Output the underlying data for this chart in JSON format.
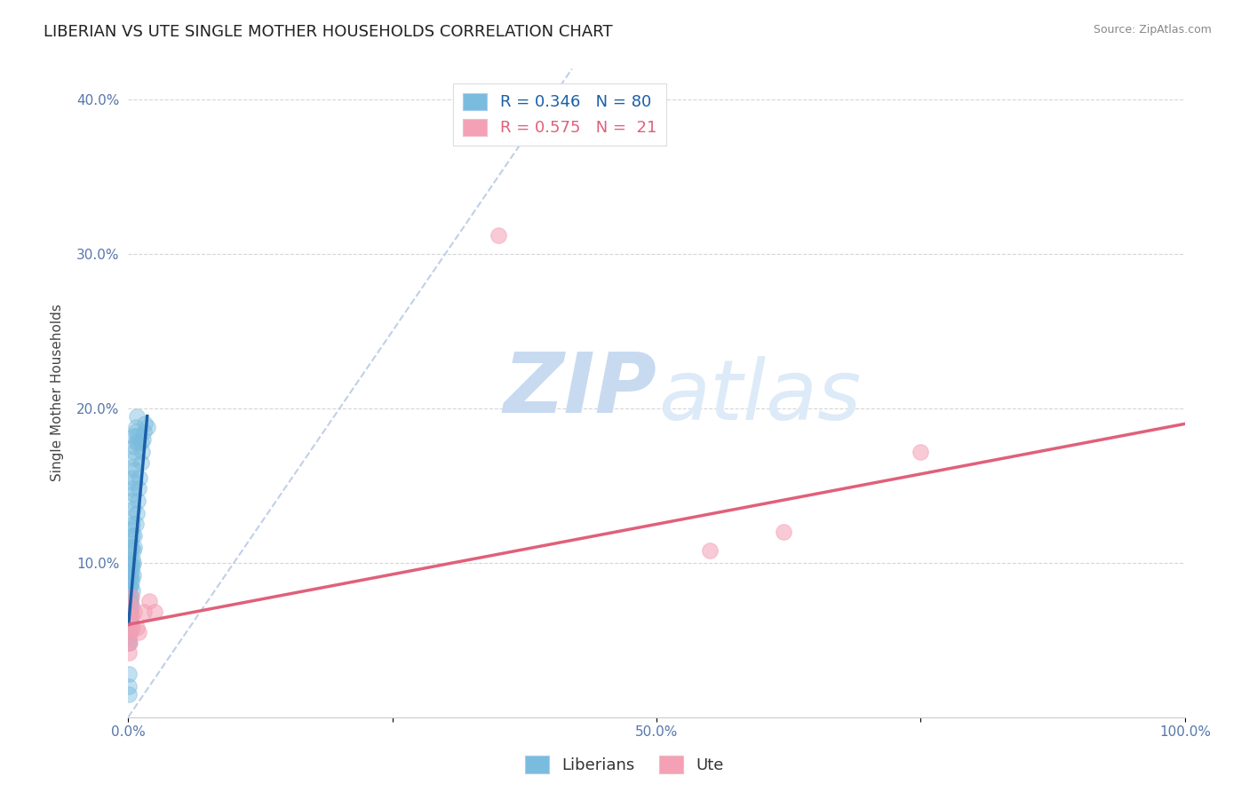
{
  "title": "LIBERIAN VS UTE SINGLE MOTHER HOUSEHOLDS CORRELATION CHART",
  "source": "Source: ZipAtlas.com",
  "ylabel": "Single Mother Households",
  "xlim": [
    0.0,
    1.0
  ],
  "ylim": [
    0.0,
    0.42
  ],
  "blue_R": 0.346,
  "blue_N": 80,
  "pink_R": 0.575,
  "pink_N": 21,
  "blue_color": "#7abcde",
  "pink_color": "#f4a0b5",
  "blue_line_color": "#1a5fa8",
  "pink_line_color": "#e0607a",
  "legend_label_blue": "Liberians",
  "legend_label_pink": "Ute",
  "watermark_zip": "ZIP",
  "watermark_atlas": "atlas",
  "background_color": "#ffffff",
  "blue_scatter": [
    [
      0.0005,
      0.055
    ],
    [
      0.0008,
      0.048
    ],
    [
      0.001,
      0.062
    ],
    [
      0.0008,
      0.072
    ],
    [
      0.001,
      0.058
    ],
    [
      0.0012,
      0.068
    ],
    [
      0.0015,
      0.08
    ],
    [
      0.001,
      0.09
    ],
    [
      0.0012,
      0.063
    ],
    [
      0.0015,
      0.055
    ],
    [
      0.0018,
      0.075
    ],
    [
      0.002,
      0.068
    ],
    [
      0.0015,
      0.1
    ],
    [
      0.0018,
      0.085
    ],
    [
      0.0022,
      0.092
    ],
    [
      0.0025,
      0.078
    ],
    [
      0.002,
      0.108
    ],
    [
      0.0022,
      0.1
    ],
    [
      0.003,
      0.088
    ],
    [
      0.0025,
      0.115
    ],
    [
      0.003,
      0.095
    ],
    [
      0.0028,
      0.122
    ],
    [
      0.0035,
      0.11
    ],
    [
      0.003,
      0.13
    ],
    [
      0.0038,
      0.102
    ],
    [
      0.004,
      0.118
    ],
    [
      0.0035,
      0.14
    ],
    [
      0.0042,
      0.125
    ],
    [
      0.0038,
      0.148
    ],
    [
      0.0045,
      0.135
    ],
    [
      0.004,
      0.155
    ],
    [
      0.005,
      0.145
    ],
    [
      0.0042,
      0.162
    ],
    [
      0.005,
      0.152
    ],
    [
      0.0055,
      0.16
    ],
    [
      0.006,
      0.175
    ],
    [
      0.005,
      0.182
    ],
    [
      0.006,
      0.168
    ],
    [
      0.007,
      0.188
    ],
    [
      0.006,
      0.172
    ],
    [
      0.007,
      0.178
    ],
    [
      0.008,
      0.195
    ],
    [
      0.007,
      0.185
    ],
    [
      0.009,
      0.178
    ],
    [
      0.008,
      0.182
    ],
    [
      0.0004,
      0.052
    ],
    [
      0.0006,
      0.065
    ],
    [
      0.0006,
      0.048
    ],
    [
      0.0008,
      0.075
    ],
    [
      0.001,
      0.082
    ],
    [
      0.0012,
      0.068
    ],
    [
      0.0015,
      0.092
    ],
    [
      0.002,
      0.058
    ],
    [
      0.0022,
      0.075
    ],
    [
      0.0025,
      0.085
    ],
    [
      0.003,
      0.098
    ],
    [
      0.003,
      0.072
    ],
    [
      0.0035,
      0.09
    ],
    [
      0.004,
      0.082
    ],
    [
      0.004,
      0.098
    ],
    [
      0.0045,
      0.092
    ],
    [
      0.005,
      0.108
    ],
    [
      0.005,
      0.1
    ],
    [
      0.006,
      0.11
    ],
    [
      0.006,
      0.118
    ],
    [
      0.007,
      0.125
    ],
    [
      0.008,
      0.132
    ],
    [
      0.009,
      0.14
    ],
    [
      0.01,
      0.148
    ],
    [
      0.011,
      0.155
    ],
    [
      0.012,
      0.165
    ],
    [
      0.013,
      0.172
    ],
    [
      0.014,
      0.18
    ],
    [
      0.012,
      0.178
    ],
    [
      0.015,
      0.185
    ],
    [
      0.016,
      0.19
    ],
    [
      0.018,
      0.188
    ],
    [
      0.0003,
      0.02
    ],
    [
      0.0005,
      0.028
    ],
    [
      0.0003,
      0.015
    ]
  ],
  "pink_scatter": [
    [
      0.0005,
      0.042
    ],
    [
      0.0008,
      0.05
    ],
    [
      0.001,
      0.058
    ],
    [
      0.0012,
      0.065
    ],
    [
      0.0015,
      0.048
    ],
    [
      0.0018,
      0.055
    ],
    [
      0.002,
      0.072
    ],
    [
      0.0022,
      0.062
    ],
    [
      0.003,
      0.078
    ],
    [
      0.0035,
      0.065
    ],
    [
      0.004,
      0.058
    ],
    [
      0.006,
      0.068
    ],
    [
      0.008,
      0.058
    ],
    [
      0.01,
      0.055
    ],
    [
      0.015,
      0.068
    ],
    [
      0.02,
      0.075
    ],
    [
      0.025,
      0.068
    ],
    [
      0.35,
      0.312
    ],
    [
      0.55,
      0.108
    ],
    [
      0.62,
      0.12
    ],
    [
      0.75,
      0.172
    ]
  ],
  "blue_line_x": [
    0.0003,
    0.018
  ],
  "blue_line_y": [
    0.06,
    0.195
  ],
  "pink_line_x": [
    0.0,
    1.0
  ],
  "pink_line_y": [
    0.06,
    0.19
  ],
  "diag_line_color": "#c0d0e8",
  "diag_line_x": [
    0.0,
    0.42
  ],
  "diag_line_y": [
    0.0,
    0.42
  ],
  "title_fontsize": 13,
  "label_fontsize": 11,
  "tick_fontsize": 11,
  "legend_fontsize": 13
}
